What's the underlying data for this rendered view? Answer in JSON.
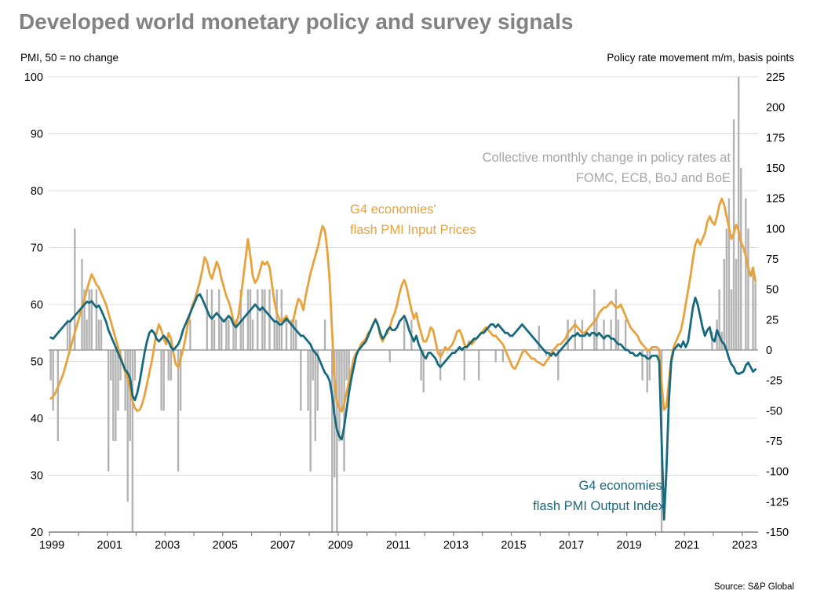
{
  "page": {
    "title": "Developed world monetary policy and survey signals",
    "source": "Source: S&P Global"
  },
  "axes_labels": {
    "left": "PMI, 50 = no change",
    "right": "Policy rate movement m/m, basis points"
  },
  "annotations": {
    "bars": {
      "line1": "Collective monthly change in policy rates at",
      "line2": "FOMC, ECB, BoJ and BoE"
    },
    "input_prices": {
      "line1": "G4 economies'",
      "line2": "flash PMI Input Prices"
    },
    "output_index": {
      "line1": "G4 economies'",
      "line2": "flash PMI Output Index"
    }
  },
  "colors": {
    "title": "#828282",
    "bars": "#B3B3B3",
    "baseline": "#9B9B9B",
    "gridline": "#DCDCDC",
    "axis": "#808080",
    "orange": "#E9A23B",
    "teal": "#17697E",
    "annotation_gray": "#A6A6A6"
  },
  "chart_data": {
    "type": "combo",
    "title": "Developed world monetary policy and survey signals",
    "frequency": "monthly",
    "start_year": 1999,
    "start_month": 1,
    "x_axis": {
      "min": 1998.97,
      "max": 2023.55,
      "tick_years_all": [
        1999,
        2000,
        2001,
        2002,
        2003,
        2004,
        2005,
        2006,
        2007,
        2008,
        2009,
        2010,
        2011,
        2012,
        2013,
        2014,
        2015,
        2016,
        2017,
        2018,
        2019,
        2020,
        2021,
        2022,
        2023
      ],
      "tick_years_labeled": [
        1999,
        2001,
        2003,
        2005,
        2007,
        2009,
        2011,
        2013,
        2015,
        2017,
        2019,
        2021,
        2023
      ]
    },
    "left_axis": {
      "label": "PMI, 50 = no change",
      "min": 20,
      "max": 100,
      "ticks": [
        100,
        90,
        80,
        70,
        60,
        50,
        40,
        30,
        20
      ]
    },
    "right_axis": {
      "label": "Policy rate movement m/m, basis points",
      "min": -150,
      "max": 225,
      "ticks": [
        225,
        200,
        175,
        150,
        125,
        100,
        75,
        50,
        25,
        0,
        -25,
        -50,
        -75,
        -100,
        -125,
        -150
      ],
      "zero_aligned_with_pmi": 52
    },
    "bars": {
      "name": "Collective monthly change in policy rates at FOMC, ECB, BoJ and BoE",
      "unit": "basis points",
      "values": [
        -25,
        -50,
        0,
        -75,
        0,
        0,
        0,
        25,
        25,
        0,
        100,
        0,
        0,
        75,
        50,
        25,
        50,
        50,
        0,
        50,
        25,
        25,
        0,
        0,
        -100,
        -25,
        -75,
        -75,
        -50,
        -25,
        0,
        -50,
        -125,
        -75,
        -150,
        -25,
        0,
        0,
        0,
        0,
        0,
        0,
        0,
        0,
        0,
        0,
        -50,
        -50,
        0,
        -25,
        -25,
        0,
        0,
        -100,
        -50,
        0,
        0,
        0,
        25,
        0,
        0,
        0,
        0,
        0,
        0,
        50,
        0,
        50,
        25,
        0,
        50,
        25,
        0,
        25,
        25,
        0,
        25,
        25,
        0,
        50,
        25,
        0,
        50,
        50,
        25,
        0,
        50,
        0,
        50,
        50,
        0,
        50,
        0,
        25,
        50,
        25,
        50,
        0,
        25,
        0,
        25,
        25,
        25,
        0,
        -50,
        0,
        0,
        -50,
        -100,
        -25,
        -75,
        -50,
        0,
        0,
        25,
        0,
        0,
        -150,
        -105,
        -150,
        -75,
        -50,
        -100,
        -25,
        -25,
        0,
        0,
        0,
        0,
        0,
        0,
        0,
        0,
        0,
        0,
        0,
        0,
        0,
        0,
        0,
        0,
        -10,
        0,
        0,
        0,
        0,
        0,
        25,
        0,
        0,
        25,
        0,
        0,
        0,
        -25,
        -35,
        0,
        0,
        0,
        0,
        0,
        0,
        -25,
        0,
        0,
        0,
        0,
        0,
        0,
        0,
        0,
        0,
        -25,
        0,
        0,
        0,
        0,
        0,
        -25,
        0,
        0,
        0,
        0,
        0,
        0,
        -10,
        0,
        0,
        -10,
        0,
        0,
        0,
        0,
        0,
        0,
        0,
        0,
        0,
        0,
        0,
        0,
        0,
        0,
        20,
        0,
        0,
        -5,
        0,
        0,
        0,
        0,
        -25,
        0,
        0,
        0,
        25,
        0,
        0,
        25,
        0,
        0,
        25,
        0,
        0,
        0,
        0,
        50,
        25,
        0,
        0,
        25,
        0,
        0,
        25,
        0,
        50,
        25,
        0,
        0,
        25,
        0,
        0,
        0,
        0,
        0,
        0,
        -25,
        0,
        -35,
        -25,
        0,
        0,
        0,
        0,
        -150,
        0,
        0,
        0,
        0,
        0,
        0,
        0,
        0,
        0,
        0,
        0,
        0,
        0,
        0,
        0,
        0,
        0,
        0,
        0,
        0,
        15,
        0,
        25,
        50,
        15,
        75,
        100,
        125,
        50,
        190,
        75,
        225,
        150,
        0,
        125,
        100,
        0,
        65,
        55
      ]
    },
    "lines": [
      {
        "name": "G4 economies' flash PMI Input Prices",
        "axis": "left",
        "values": [
          43.5,
          43.8,
          44.5,
          45.5,
          46.5,
          47.5,
          49.0,
          50.5,
          52.0,
          53.5,
          55.0,
          56.5,
          58.0,
          59.5,
          61.0,
          62.5,
          64.0,
          65.3,
          64.5,
          63.5,
          63.0,
          62.0,
          61.0,
          60.0,
          58.5,
          57.0,
          55.5,
          54.0,
          52.5,
          51.0,
          49.5,
          48.0,
          47.0,
          45.0,
          43.0,
          41.8,
          41.3,
          41.5,
          42.5,
          44.0,
          46.0,
          48.0,
          50.0,
          52.5,
          55.0,
          56.5,
          55.5,
          54.0,
          53.0,
          55.0,
          54.0,
          51.5,
          49.5,
          49.0,
          50.5,
          52.0,
          54.0,
          56.5,
          58.5,
          60.0,
          61.0,
          62.5,
          64.0,
          66.0,
          68.3,
          67.5,
          65.5,
          64.5,
          66.0,
          67.5,
          66.5,
          64.5,
          63.0,
          61.5,
          60.5,
          59.0,
          57.0,
          56.5,
          58.0,
          61.0,
          64.5,
          68.0,
          71.5,
          68.5,
          65.0,
          63.8,
          64.5,
          66.0,
          67.5,
          67.0,
          67.5,
          66.5,
          63.5,
          60.5,
          58.5,
          57.5,
          57.0,
          57.5,
          58.0,
          57.0,
          56.5,
          57.5,
          59.5,
          61.0,
          60.5,
          59.0,
          61.5,
          63.5,
          65.5,
          67.0,
          68.5,
          70.0,
          72.0,
          73.8,
          73.0,
          69.5,
          64.0,
          55.0,
          47.0,
          43.0,
          41.8,
          41.2,
          42.5,
          44.5,
          46.5,
          48.5,
          50.5,
          51.5,
          52.0,
          53.0,
          53.5,
          54.0,
          55.0,
          55.5,
          56.5,
          57.5,
          56.5,
          54.5,
          53.5,
          54.5,
          55.0,
          56.0,
          57.5,
          58.5,
          60.0,
          62.0,
          63.5,
          64.3,
          63.0,
          61.0,
          59.0,
          57.5,
          58.5,
          56.5,
          55.0,
          53.5,
          53.5,
          54.5,
          56.0,
          55.5,
          53.5,
          51.5,
          50.8,
          51.5,
          52.5,
          52.0,
          52.5,
          53.0,
          54.0,
          55.3,
          55.5,
          54.5,
          53.0,
          52.5,
          53.5,
          53.0,
          53.5,
          54.0,
          54.5,
          55.0,
          55.5,
          56.0,
          55.5,
          55.0,
          54.5,
          54.5,
          54.0,
          53.5,
          53.0,
          52.0,
          51.0,
          50.0,
          49.0,
          48.7,
          49.5,
          50.5,
          51.5,
          52.0,
          51.5,
          51.0,
          50.5,
          50.5,
          50.0,
          49.8,
          49.5,
          49.3,
          50.0,
          50.5,
          51.5,
          52.0,
          52.5,
          53.0,
          53.0,
          53.5,
          54.0,
          55.0,
          55.5,
          56.0,
          56.5,
          56.0,
          55.5,
          55.0,
          55.0,
          55.5,
          56.0,
          56.5,
          57.0,
          57.5,
          58.5,
          59.0,
          59.5,
          59.5,
          60.0,
          60.5,
          60.0,
          59.5,
          59.5,
          60.0,
          59.0,
          58.0,
          57.0,
          56.0,
          55.5,
          55.0,
          54.5,
          53.5,
          53.0,
          52.5,
          52.0,
          52.0,
          52.5,
          52.5,
          52.5,
          52.0,
          46.0,
          41.5,
          42.0,
          46.5,
          50.5,
          52.5,
          53.5,
          54.5,
          55.5,
          57.5,
          60.0,
          62.5,
          65.0,
          68.0,
          70.5,
          71.5,
          70.5,
          71.5,
          72.5,
          74.5,
          75.5,
          74.5,
          74.0,
          75.5,
          77.5,
          78.6,
          77.5,
          75.5,
          73.5,
          71.5,
          72.5,
          74.0,
          73.0,
          71.0,
          70.0,
          68.5,
          66.5,
          65.0,
          66.5,
          64.0
        ]
      },
      {
        "name": "G4 economies' flash PMI Output Index",
        "axis": "left",
        "values": [
          54.2,
          54.0,
          54.5,
          55.0,
          55.5,
          56.0,
          56.5,
          57.0,
          57.0,
          57.5,
          58.0,
          58.5,
          59.0,
          59.5,
          60.0,
          60.5,
          60.3,
          60.6,
          60.0,
          59.5,
          59.8,
          59.0,
          58.0,
          57.0,
          55.5,
          54.5,
          53.5,
          52.5,
          51.5,
          50.5,
          49.5,
          48.5,
          48.0,
          47.0,
          44.0,
          43.2,
          44.5,
          46.5,
          49.0,
          51.5,
          53.5,
          55.0,
          55.5,
          55.0,
          54.0,
          53.5,
          54.0,
          54.5,
          54.0,
          53.5,
          52.5,
          52.0,
          52.5,
          53.0,
          54.0,
          55.5,
          56.5,
          57.5,
          58.5,
          59.5,
          60.5,
          61.5,
          61.8,
          61.0,
          60.0,
          59.0,
          58.0,
          57.5,
          58.0,
          58.5,
          58.0,
          57.5,
          57.0,
          57.5,
          58.0,
          57.5,
          56.5,
          56.0,
          56.5,
          57.0,
          57.5,
          58.0,
          58.5,
          59.0,
          59.5,
          60.0,
          59.5,
          59.0,
          59.5,
          59.0,
          58.5,
          58.0,
          57.5,
          57.0,
          57.0,
          56.5,
          56.5,
          57.0,
          57.5,
          57.0,
          56.5,
          56.0,
          55.5,
          55.0,
          54.5,
          54.5,
          54.0,
          53.5,
          53.0,
          52.0,
          51.5,
          51.0,
          50.0,
          49.0,
          48.0,
          47.5,
          46.5,
          44.0,
          40.5,
          38.0,
          36.8,
          36.3,
          38.5,
          41.5,
          44.5,
          47.0,
          49.0,
          51.0,
          52.0,
          52.5,
          53.0,
          53.5,
          54.5,
          55.5,
          56.5,
          57.3,
          56.5,
          55.0,
          54.0,
          54.5,
          55.5,
          56.0,
          55.5,
          55.5,
          56.0,
          57.0,
          57.5,
          58.0,
          57.0,
          55.5,
          54.5,
          53.5,
          54.5,
          53.0,
          52.0,
          51.0,
          50.5,
          51.5,
          51.5,
          51.0,
          50.5,
          49.5,
          49.0,
          49.5,
          50.0,
          50.5,
          51.0,
          51.5,
          51.5,
          52.0,
          52.5,
          52.0,
          52.5,
          52.5,
          53.0,
          53.5,
          54.0,
          54.0,
          54.5,
          55.0,
          55.0,
          55.5,
          56.0,
          56.5,
          56.5,
          56.0,
          56.5,
          56.0,
          55.5,
          55.0,
          55.0,
          54.5,
          54.5,
          55.0,
          55.5,
          56.0,
          56.5,
          56.0,
          55.5,
          55.0,
          54.5,
          54.0,
          53.5,
          53.0,
          52.5,
          52.0,
          51.5,
          51.5,
          51.0,
          51.5,
          51.0,
          51.5,
          52.0,
          52.5,
          53.0,
          53.5,
          54.0,
          54.5,
          54.5,
          55.0,
          54.5,
          54.5,
          54.5,
          55.0,
          54.5,
          55.0,
          55.0,
          54.5,
          55.0,
          54.5,
          54.0,
          54.5,
          54.5,
          54.0,
          54.0,
          53.5,
          53.0,
          53.0,
          52.5,
          52.0,
          52.0,
          51.5,
          51.5,
          51.0,
          51.0,
          51.5,
          51.0,
          51.0,
          50.5,
          50.5,
          51.0,
          51.0,
          51.0,
          50.0,
          36.0,
          22.2,
          31.0,
          43.0,
          50.0,
          52.0,
          52.5,
          53.0,
          52.5,
          53.5,
          52.5,
          53.5,
          56.5,
          59.5,
          61.2,
          60.0,
          58.0,
          56.0,
          54.5,
          55.5,
          56.0,
          54.0,
          53.5,
          55.5,
          54.5,
          53.5,
          53.0,
          52.0,
          50.5,
          49.5,
          49.0,
          48.0,
          47.8,
          48.0,
          48.2,
          49.3,
          49.8,
          49.0,
          48.2,
          48.6
        ]
      }
    ]
  }
}
